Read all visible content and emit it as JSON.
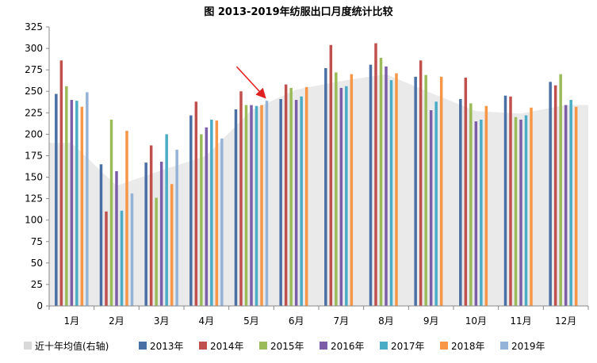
{
  "chart_data": {
    "type": "bar",
    "title": "图 2013-2019年纺服出口月度统计比较",
    "xlabel": "",
    "ylabel": "",
    "categories": [
      "1月",
      "2月",
      "3月",
      "4月",
      "5月",
      "6月",
      "7月",
      "8月",
      "9月",
      "10月",
      "11月",
      "12月"
    ],
    "ylim": [
      0,
      325
    ],
    "yticks": [
      0,
      25,
      50,
      75,
      100,
      125,
      150,
      175,
      200,
      225,
      250,
      275,
      300,
      325
    ],
    "grid": false,
    "legend_position": "bottom",
    "series": [
      {
        "name": "2013年",
        "color": "#4a6fa5",
        "values": [
          247,
          165,
          167,
          222,
          229,
          241,
          277,
          281,
          267,
          241,
          245,
          261
        ]
      },
      {
        "name": "2014年",
        "color": "#c0504d",
        "values": [
          286,
          110,
          187,
          238,
          250,
          258,
          304,
          306,
          286,
          266,
          244,
          257
        ]
      },
      {
        "name": "2015年",
        "color": "#9bbb59",
        "values": [
          256,
          217,
          126,
          200,
          234,
          254,
          272,
          289,
          269,
          236,
          220,
          270
        ]
      },
      {
        "name": "2016年",
        "color": "#7b5ea7",
        "values": [
          240,
          157,
          168,
          208,
          234,
          240,
          254,
          279,
          228,
          215,
          217,
          234
        ]
      },
      {
        "name": "2017年",
        "color": "#4bacc6",
        "values": [
          239,
          111,
          200,
          217,
          233,
          244,
          256,
          263,
          238,
          217,
          222,
          240
        ]
      },
      {
        "name": "2018年",
        "color": "#f79646",
        "values": [
          232,
          204,
          142,
          216,
          234,
          255,
          270,
          271,
          267,
          233,
          231,
          232
        ]
      },
      {
        "name": "2019年",
        "color": "#95b3d7",
        "values": [
          249,
          131,
          182,
          195,
          239,
          null,
          null,
          null,
          null,
          null,
          null,
          null
        ]
      }
    ],
    "area_series": {
      "name": "近十年均值(右轴)",
      "color": "#d9d9d9",
      "values": [
        190,
        140,
        158,
        175,
        228,
        252,
        262,
        270,
        248,
        227,
        224,
        234
      ]
    },
    "annotation": {
      "type": "arrow",
      "color": "#e02020",
      "target_category": "5月"
    }
  }
}
